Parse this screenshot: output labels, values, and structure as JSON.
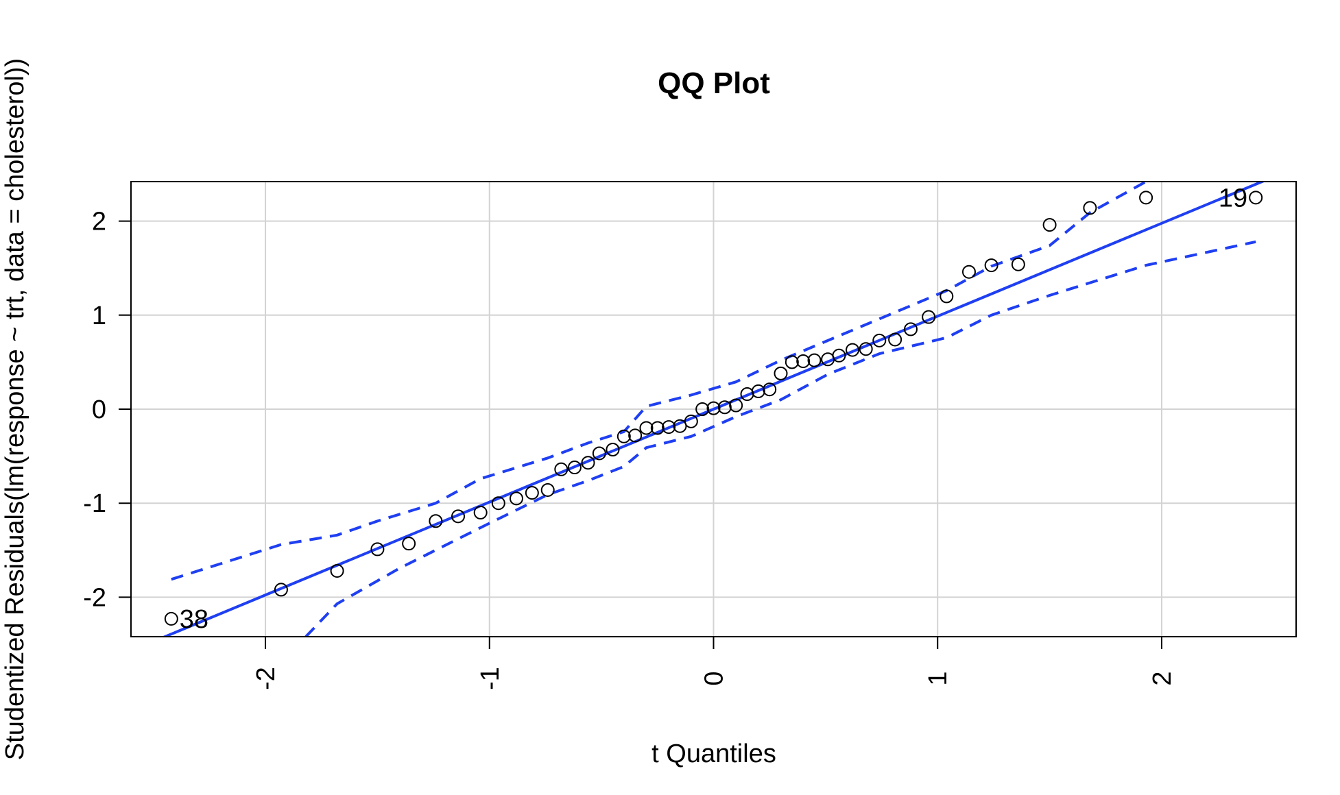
{
  "chart_data": {
    "type": "scatter",
    "title": "QQ Plot",
    "xlabel": "t Quantiles",
    "ylabel": "Studentized Residuals(lm(response ~ trt, data = cholesterol))",
    "xlim": [
      -2.6,
      2.6
    ],
    "ylim": [
      -2.42,
      2.42
    ],
    "x_ticks": [
      "-2",
      "-1",
      "0",
      "1",
      "2"
    ],
    "y_ticks": [
      "-2",
      "-1",
      "0",
      "1",
      "2"
    ],
    "grid": true,
    "colors": {
      "points": "#000000",
      "line": "#1f3ff2",
      "envelope": "#1f3ff2",
      "grid": "#d3d3d3"
    },
    "series": [
      {
        "kind": "points",
        "x": [
          -2.42,
          -1.93,
          -1.68,
          -1.5,
          -1.36,
          -1.24,
          -1.14,
          -1.04,
          -0.96,
          -0.88,
          -0.81,
          -0.74,
          -0.68,
          -0.62,
          -0.56,
          -0.51,
          -0.45,
          -0.4,
          -0.35,
          -0.3,
          -0.25,
          -0.2,
          -0.15,
          -0.1,
          -0.05,
          0.0,
          0.05,
          0.1,
          0.15,
          0.2,
          0.25,
          0.3,
          0.35,
          0.4,
          0.45,
          0.51,
          0.56,
          0.62,
          0.68,
          0.74,
          0.81,
          0.88,
          0.96,
          1.04,
          1.14,
          1.24,
          1.36,
          1.5,
          1.68,
          1.93,
          2.42
        ],
        "y": [
          -2.23,
          -1.92,
          -1.72,
          -1.49,
          -1.43,
          -1.19,
          -1.14,
          -1.1,
          -1.0,
          -0.95,
          -0.89,
          -0.86,
          -0.64,
          -0.62,
          -0.57,
          -0.47,
          -0.43,
          -0.29,
          -0.28,
          -0.2,
          -0.2,
          -0.19,
          -0.18,
          -0.13,
          0.0,
          0.01,
          0.02,
          0.04,
          0.16,
          0.19,
          0.21,
          0.38,
          0.5,
          0.51,
          0.52,
          0.53,
          0.57,
          0.63,
          0.64,
          0.73,
          0.74,
          0.85,
          0.98,
          1.2,
          1.46,
          1.53,
          1.54,
          1.96,
          2.14,
          2.25,
          2.25
        ]
      },
      {
        "kind": "line",
        "x": [
          -2.6,
          2.6
        ],
        "y": [
          -2.57,
          2.57
        ]
      },
      {
        "kind": "envelope-upper",
        "x": [
          -2.42,
          -1.93,
          -1.68,
          -1.5,
          -1.24,
          -1.04,
          -0.74,
          -0.56,
          -0.4,
          -0.3,
          -0.1,
          0.1,
          0.3,
          0.51,
          0.74,
          1.04,
          1.24,
          1.5,
          1.68,
          1.93
        ],
        "y": [
          -1.81,
          -1.44,
          -1.34,
          -1.19,
          -1.0,
          -0.74,
          -0.52,
          -0.36,
          -0.24,
          0.03,
          0.15,
          0.29,
          0.52,
          0.73,
          0.96,
          1.26,
          1.52,
          1.74,
          2.09,
          2.42
        ]
      },
      {
        "kind": "envelope-lower",
        "x": [
          -1.82,
          -1.68,
          -1.4,
          -1.04,
          -0.74,
          -0.56,
          -0.4,
          -0.3,
          -0.1,
          0.1,
          0.3,
          0.51,
          0.74,
          1.04,
          1.24,
          1.5,
          1.93,
          2.42
        ],
        "y": [
          -2.42,
          -2.07,
          -1.69,
          -1.26,
          -0.91,
          -0.76,
          -0.61,
          -0.41,
          -0.29,
          -0.08,
          0.1,
          0.37,
          0.59,
          0.76,
          1.0,
          1.21,
          1.53,
          1.78
        ]
      }
    ],
    "annotations": [
      {
        "text": "38",
        "x": -2.42,
        "y": -2.23
      },
      {
        "text": "19",
        "x": 2.42,
        "y": 2.25
      }
    ]
  }
}
